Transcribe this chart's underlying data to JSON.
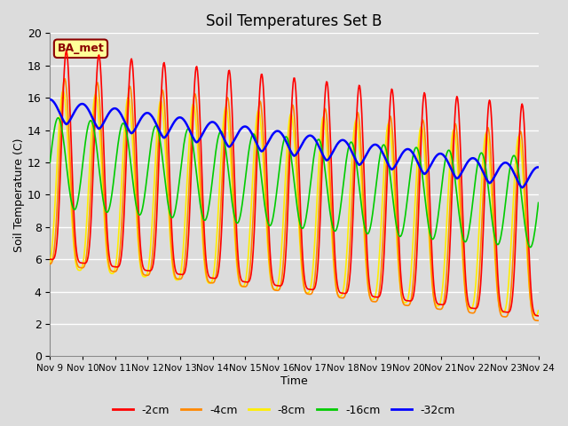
{
  "title": "Soil Temperatures Set B",
  "xlabel": "Time",
  "ylabel": "Soil Temperature (C)",
  "ylim": [
    0,
    20
  ],
  "xlim": [
    0,
    15
  ],
  "fig_width": 6.4,
  "fig_height": 4.8,
  "dpi": 100,
  "background_color": "#dcdcdc",
  "plot_bg_color": "#dcdcdc",
  "annotation_text": "BA_met",
  "annotation_bg": "#ffff99",
  "annotation_border": "#8b0000",
  "line_colors": {
    "-2cm": "#ff0000",
    "-4cm": "#ff8800",
    "-8cm": "#ffee00",
    "-16cm": "#00cc00",
    "-32cm": "#0000ff"
  },
  "line_widths": {
    "-2cm": 1.2,
    "-4cm": 1.2,
    "-8cm": 1.2,
    "-16cm": 1.2,
    "-32cm": 1.8
  },
  "tick_labels": [
    "Nov 9",
    "Nov 10",
    "Nov 11",
    "Nov 12",
    "Nov 13",
    "Nov 14",
    "Nov 15",
    "Nov 16",
    "Nov 17",
    "Nov 18",
    "Nov 19",
    "Nov 20",
    "Nov 21",
    "Nov 22",
    "Nov 23",
    "Nov 24"
  ],
  "tick_positions": [
    0,
    1,
    2,
    3,
    4,
    5,
    6,
    7,
    8,
    9,
    10,
    11,
    12,
    13,
    14,
    15
  ]
}
